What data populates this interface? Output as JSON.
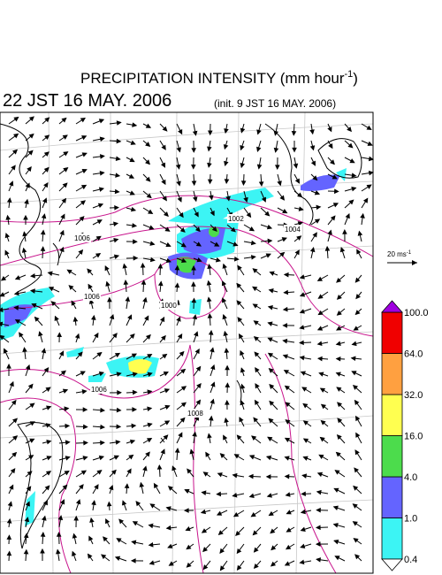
{
  "title": {
    "text": "PRECIPITATION INTENSITY (mm hour",
    "superscript": "-1",
    "close": ")"
  },
  "valid_time": "22 JST 16 MAY. 2006",
  "init_time": "(init. 9 JST 16 MAY. 2006)",
  "reference_vector": {
    "label": "20 ms",
    "superscript": "-1"
  },
  "colorbar": {
    "levels": [
      "0.4",
      "1.0",
      "4.0",
      "16.0",
      "32.0",
      "64.0",
      "100.0"
    ],
    "colors": [
      "#3cf4f4",
      "#6464ff",
      "#4cdc4c",
      "#ffff50",
      "#ffa040",
      "#f00000"
    ],
    "over_color": "#a000e0",
    "under_color": "#ffffff"
  },
  "isobar_labels": [
    "1006",
    "1002",
    "1004",
    "1006",
    "1000",
    "1006",
    "1008"
  ]
}
